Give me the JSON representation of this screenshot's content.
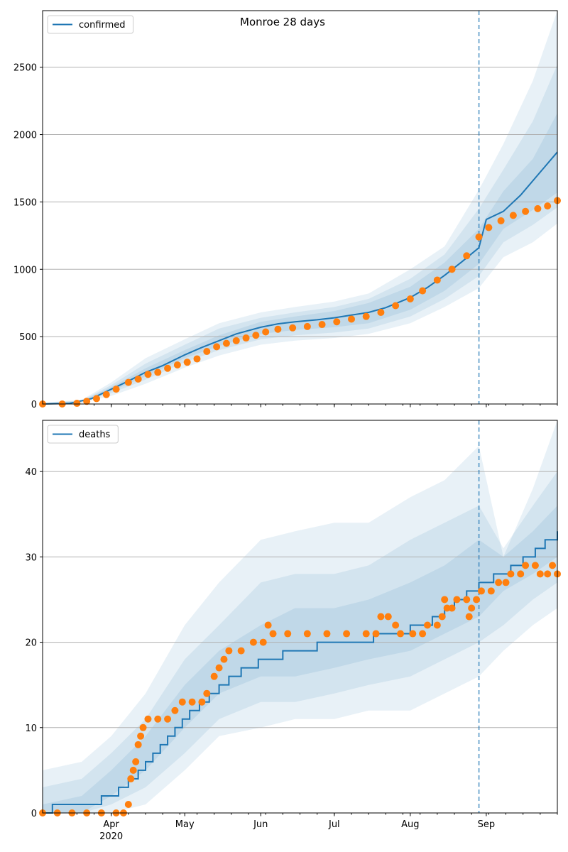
{
  "figure": {
    "title": "Monroe 28 days"
  },
  "colors": {
    "model": "#1f77b4",
    "observed": "#ff7f0e",
    "grid": "#b0b0b0",
    "band": "#1f77b4"
  },
  "chart_data": [
    {
      "type": "line",
      "title": "Monroe 28 days",
      "legend": [
        "confirmed"
      ],
      "legend_position": "upper-left",
      "grid": "horizontal",
      "ylim": [
        0,
        2920
      ],
      "yticks": [
        0,
        500,
        1000,
        1500,
        2000,
        2500
      ],
      "xlim": [
        "2020-03-04",
        "2020-09-30"
      ],
      "vline_date": "2020-08-29",
      "model_line": [
        [
          "2020-03-04",
          0
        ],
        [
          "2020-03-15",
          5
        ],
        [
          "2020-03-24",
          40
        ],
        [
          "2020-04-01",
          110
        ],
        [
          "2020-04-08",
          170
        ],
        [
          "2020-04-15",
          235
        ],
        [
          "2020-04-22",
          285
        ],
        [
          "2020-05-01",
          365
        ],
        [
          "2020-05-08",
          420
        ],
        [
          "2020-05-15",
          470
        ],
        [
          "2020-05-22",
          520
        ],
        [
          "2020-06-01",
          570
        ],
        [
          "2020-06-08",
          595
        ],
        [
          "2020-06-15",
          610
        ],
        [
          "2020-06-24",
          625
        ],
        [
          "2020-07-01",
          640
        ],
        [
          "2020-07-08",
          660
        ],
        [
          "2020-07-15",
          680
        ],
        [
          "2020-07-22",
          715
        ],
        [
          "2020-08-01",
          790
        ],
        [
          "2020-08-08",
          865
        ],
        [
          "2020-08-15",
          955
        ],
        [
          "2020-08-22",
          1055
        ],
        [
          "2020-08-29",
          1160
        ],
        [
          "2020-09-01",
          1370
        ],
        [
          "2020-09-08",
          1430
        ],
        [
          "2020-09-15",
          1550
        ],
        [
          "2020-09-22",
          1700
        ],
        [
          "2020-09-30",
          1870
        ]
      ],
      "band_outer": [
        [
          "2020-03-04",
          0,
          10
        ],
        [
          "2020-03-20",
          10,
          30
        ],
        [
          "2020-04-01",
          60,
          160
        ],
        [
          "2020-04-15",
          150,
          340
        ],
        [
          "2020-05-01",
          270,
          480
        ],
        [
          "2020-05-15",
          360,
          600
        ],
        [
          "2020-06-01",
          440,
          680
        ],
        [
          "2020-06-15",
          470,
          720
        ],
        [
          "2020-07-01",
          490,
          760
        ],
        [
          "2020-07-15",
          520,
          820
        ],
        [
          "2020-08-01",
          600,
          1000
        ],
        [
          "2020-08-15",
          720,
          1170
        ],
        [
          "2020-08-29",
          860,
          1590
        ],
        [
          "2020-09-08",
          1090,
          1930
        ],
        [
          "2020-09-20",
          1200,
          2400
        ],
        [
          "2020-09-30",
          1340,
          2920
        ]
      ],
      "band_mid": [
        [
          "2020-03-04",
          0,
          8
        ],
        [
          "2020-03-20",
          12,
          25
        ],
        [
          "2020-04-01",
          80,
          140
        ],
        [
          "2020-04-15",
          180,
          300
        ],
        [
          "2020-05-01",
          310,
          440
        ],
        [
          "2020-05-15",
          400,
          560
        ],
        [
          "2020-06-01",
          480,
          640
        ],
        [
          "2020-06-15",
          510,
          680
        ],
        [
          "2020-07-01",
          530,
          720
        ],
        [
          "2020-07-15",
          560,
          780
        ],
        [
          "2020-08-01",
          650,
          930
        ],
        [
          "2020-08-15",
          780,
          1110
        ],
        [
          "2020-08-29",
          950,
          1450
        ],
        [
          "2020-09-08",
          1200,
          1740
        ],
        [
          "2020-09-20",
          1330,
          2100
        ],
        [
          "2020-09-30",
          1460,
          2520
        ]
      ],
      "band_inner": [
        [
          "2020-03-04",
          0,
          5
        ],
        [
          "2020-03-20",
          14,
          22
        ],
        [
          "2020-04-01",
          95,
          125
        ],
        [
          "2020-04-15",
          205,
          265
        ],
        [
          "2020-05-01",
          340,
          400
        ],
        [
          "2020-05-15",
          430,
          510
        ],
        [
          "2020-06-01",
          520,
          610
        ],
        [
          "2020-06-15",
          550,
          650
        ],
        [
          "2020-07-01",
          570,
          690
        ],
        [
          "2020-07-15",
          600,
          750
        ],
        [
          "2020-08-01",
          700,
          870
        ],
        [
          "2020-08-15",
          840,
          1050
        ],
        [
          "2020-08-29",
          1040,
          1300
        ],
        [
          "2020-09-08",
          1300,
          1580
        ],
        [
          "2020-09-20",
          1440,
          1820
        ],
        [
          "2020-09-30",
          1570,
          2160
        ]
      ],
      "observed": [
        [
          "2020-03-04",
          0
        ],
        [
          "2020-03-12",
          0
        ],
        [
          "2020-03-18",
          5
        ],
        [
          "2020-03-22",
          20
        ],
        [
          "2020-03-26",
          40
        ],
        [
          "2020-03-30",
          70
        ],
        [
          "2020-04-03",
          110
        ],
        [
          "2020-04-08",
          160
        ],
        [
          "2020-04-12",
          185
        ],
        [
          "2020-04-16",
          220
        ],
        [
          "2020-04-20",
          235
        ],
        [
          "2020-04-24",
          265
        ],
        [
          "2020-04-28",
          290
        ],
        [
          "2020-05-02",
          310
        ],
        [
          "2020-05-06",
          335
        ],
        [
          "2020-05-10",
          390
        ],
        [
          "2020-05-14",
          425
        ],
        [
          "2020-05-18",
          450
        ],
        [
          "2020-05-22",
          470
        ],
        [
          "2020-05-26",
          490
        ],
        [
          "2020-05-30",
          510
        ],
        [
          "2020-06-03",
          535
        ],
        [
          "2020-06-08",
          555
        ],
        [
          "2020-06-14",
          565
        ],
        [
          "2020-06-20",
          575
        ],
        [
          "2020-06-26",
          590
        ],
        [
          "2020-07-02",
          610
        ],
        [
          "2020-07-08",
          630
        ],
        [
          "2020-07-14",
          650
        ],
        [
          "2020-07-20",
          680
        ],
        [
          "2020-07-26",
          730
        ],
        [
          "2020-08-01",
          780
        ],
        [
          "2020-08-06",
          840
        ],
        [
          "2020-08-12",
          920
        ],
        [
          "2020-08-18",
          1000
        ],
        [
          "2020-08-24",
          1100
        ],
        [
          "2020-08-29",
          1240
        ],
        [
          "2020-09-02",
          1310
        ],
        [
          "2020-09-07",
          1360
        ],
        [
          "2020-09-12",
          1400
        ],
        [
          "2020-09-17",
          1430
        ],
        [
          "2020-09-22",
          1450
        ],
        [
          "2020-09-26",
          1470
        ],
        [
          "2020-09-30",
          1510
        ]
      ]
    },
    {
      "type": "line",
      "legend": [
        "deaths"
      ],
      "legend_position": "upper-left",
      "grid": "horizontal",
      "ylim": [
        0,
        46
      ],
      "yticks": [
        0,
        10,
        20,
        30,
        40
      ],
      "xlim": [
        "2020-03-04",
        "2020-09-30"
      ],
      "vline_date": "2020-08-29",
      "x_tick_labels": [
        "Apr\n2020",
        "May",
        "Jun",
        "Jul",
        "Aug",
        "Sep"
      ],
      "model_line": [
        [
          "2020-03-04",
          0
        ],
        [
          "2020-03-08",
          1
        ],
        [
          "2020-03-28",
          2
        ],
        [
          "2020-04-04",
          3
        ],
        [
          "2020-04-08",
          4
        ],
        [
          "2020-04-12",
          5
        ],
        [
          "2020-04-15",
          6
        ],
        [
          "2020-04-18",
          7
        ],
        [
          "2020-04-21",
          8
        ],
        [
          "2020-04-24",
          9
        ],
        [
          "2020-04-27",
          10
        ],
        [
          "2020-04-30",
          11
        ],
        [
          "2020-05-03",
          12
        ],
        [
          "2020-05-07",
          13
        ],
        [
          "2020-05-11",
          14
        ],
        [
          "2020-05-15",
          15
        ],
        [
          "2020-05-19",
          16
        ],
        [
          "2020-05-24",
          17
        ],
        [
          "2020-05-31",
          18
        ],
        [
          "2020-06-10",
          19
        ],
        [
          "2020-06-24",
          20
        ],
        [
          "2020-07-17",
          21
        ],
        [
          "2020-08-01",
          22
        ],
        [
          "2020-08-10",
          23
        ],
        [
          "2020-08-15",
          24
        ],
        [
          "2020-08-19",
          25
        ],
        [
          "2020-08-24",
          26
        ],
        [
          "2020-08-29",
          27
        ],
        [
          "2020-09-04",
          28
        ],
        [
          "2020-09-11",
          29
        ],
        [
          "2020-09-16",
          30
        ],
        [
          "2020-09-21",
          31
        ],
        [
          "2020-09-25",
          32
        ],
        [
          "2020-09-30",
          33
        ]
      ],
      "band_outer": [
        [
          "2020-03-04",
          0,
          5
        ],
        [
          "2020-03-20",
          0,
          6
        ],
        [
          "2020-04-01",
          0,
          9
        ],
        [
          "2020-04-15",
          1,
          14
        ],
        [
          "2020-05-01",
          5,
          22
        ],
        [
          "2020-05-15",
          9,
          27
        ],
        [
          "2020-06-01",
          10,
          32
        ],
        [
          "2020-06-15",
          11,
          33
        ],
        [
          "2020-07-01",
          11,
          34
        ],
        [
          "2020-07-15",
          12,
          34
        ],
        [
          "2020-08-01",
          12,
          37
        ],
        [
          "2020-08-15",
          14,
          39
        ],
        [
          "2020-08-29",
          16,
          43
        ],
        [
          "2020-09-08",
          19,
          30
        ],
        [
          "2020-09-20",
          22,
          38
        ],
        [
          "2020-09-30",
          24,
          46
        ]
      ],
      "band_mid": [
        [
          "2020-03-04",
          0,
          3
        ],
        [
          "2020-03-20",
          0,
          4
        ],
        [
          "2020-04-01",
          1,
          7
        ],
        [
          "2020-04-15",
          3,
          11
        ],
        [
          "2020-05-01",
          7,
          18
        ],
        [
          "2020-05-15",
          11,
          22
        ],
        [
          "2020-06-01",
          13,
          27
        ],
        [
          "2020-06-15",
          13,
          28
        ],
        [
          "2020-07-01",
          14,
          28
        ],
        [
          "2020-07-15",
          15,
          29
        ],
        [
          "2020-08-01",
          16,
          32
        ],
        [
          "2020-08-15",
          18,
          34
        ],
        [
          "2020-08-29",
          20,
          36
        ],
        [
          "2020-09-08",
          22,
          31
        ],
        [
          "2020-09-20",
          25,
          36
        ],
        [
          "2020-09-30",
          27,
          40
        ]
      ],
      "band_inner": [
        [
          "2020-03-04",
          0,
          1
        ],
        [
          "2020-03-20",
          0,
          2
        ],
        [
          "2020-04-01",
          2,
          5
        ],
        [
          "2020-04-15",
          5,
          9
        ],
        [
          "2020-05-01",
          10,
          15
        ],
        [
          "2020-05-15",
          14,
          19
        ],
        [
          "2020-06-01",
          16,
          22
        ],
        [
          "2020-06-15",
          16,
          24
        ],
        [
          "2020-07-01",
          17,
          24
        ],
        [
          "2020-07-15",
          18,
          25
        ],
        [
          "2020-08-01",
          19,
          27
        ],
        [
          "2020-08-15",
          21,
          29
        ],
        [
          "2020-08-29",
          23,
          32
        ],
        [
          "2020-09-08",
          26,
          30
        ],
        [
          "2020-09-20",
          28,
          33
        ],
        [
          "2020-09-30",
          30,
          36
        ]
      ],
      "observed": [
        [
          "2020-03-04",
          0
        ],
        [
          "2020-03-10",
          0
        ],
        [
          "2020-03-16",
          0
        ],
        [
          "2020-03-22",
          0
        ],
        [
          "2020-03-28",
          0
        ],
        [
          "2020-04-03",
          0
        ],
        [
          "2020-04-06",
          0
        ],
        [
          "2020-04-08",
          1
        ],
        [
          "2020-04-09",
          4
        ],
        [
          "2020-04-10",
          5
        ],
        [
          "2020-04-11",
          6
        ],
        [
          "2020-04-12",
          8
        ],
        [
          "2020-04-13",
          9
        ],
        [
          "2020-04-14",
          10
        ],
        [
          "2020-04-16",
          11
        ],
        [
          "2020-04-20",
          11
        ],
        [
          "2020-04-24",
          11
        ],
        [
          "2020-04-27",
          12
        ],
        [
          "2020-04-30",
          13
        ],
        [
          "2020-05-04",
          13
        ],
        [
          "2020-05-08",
          13
        ],
        [
          "2020-05-10",
          14
        ],
        [
          "2020-05-13",
          16
        ],
        [
          "2020-05-15",
          17
        ],
        [
          "2020-05-17",
          18
        ],
        [
          "2020-05-19",
          19
        ],
        [
          "2020-05-24",
          19
        ],
        [
          "2020-05-29",
          20
        ],
        [
          "2020-06-02",
          20
        ],
        [
          "2020-06-04",
          22
        ],
        [
          "2020-06-06",
          21
        ],
        [
          "2020-06-12",
          21
        ],
        [
          "2020-06-20",
          21
        ],
        [
          "2020-06-28",
          21
        ],
        [
          "2020-07-06",
          21
        ],
        [
          "2020-07-14",
          21
        ],
        [
          "2020-07-18",
          21
        ],
        [
          "2020-07-20",
          23
        ],
        [
          "2020-07-23",
          23
        ],
        [
          "2020-07-26",
          22
        ],
        [
          "2020-07-28",
          21
        ],
        [
          "2020-08-02",
          21
        ],
        [
          "2020-08-06",
          21
        ],
        [
          "2020-08-08",
          22
        ],
        [
          "2020-08-12",
          22
        ],
        [
          "2020-08-14",
          23
        ],
        [
          "2020-08-15",
          25
        ],
        [
          "2020-08-16",
          24
        ],
        [
          "2020-08-18",
          24
        ],
        [
          "2020-08-20",
          25
        ],
        [
          "2020-08-24",
          25
        ],
        [
          "2020-08-25",
          23
        ],
        [
          "2020-08-26",
          24
        ],
        [
          "2020-08-28",
          25
        ],
        [
          "2020-08-30",
          26
        ],
        [
          "2020-09-03",
          26
        ],
        [
          "2020-09-06",
          27
        ],
        [
          "2020-09-09",
          27
        ],
        [
          "2020-09-11",
          28
        ],
        [
          "2020-09-15",
          28
        ],
        [
          "2020-09-17",
          29
        ],
        [
          "2020-09-21",
          29
        ],
        [
          "2020-09-23",
          28
        ],
        [
          "2020-09-26",
          28
        ],
        [
          "2020-09-28",
          29
        ],
        [
          "2020-09-30",
          28
        ]
      ]
    }
  ]
}
